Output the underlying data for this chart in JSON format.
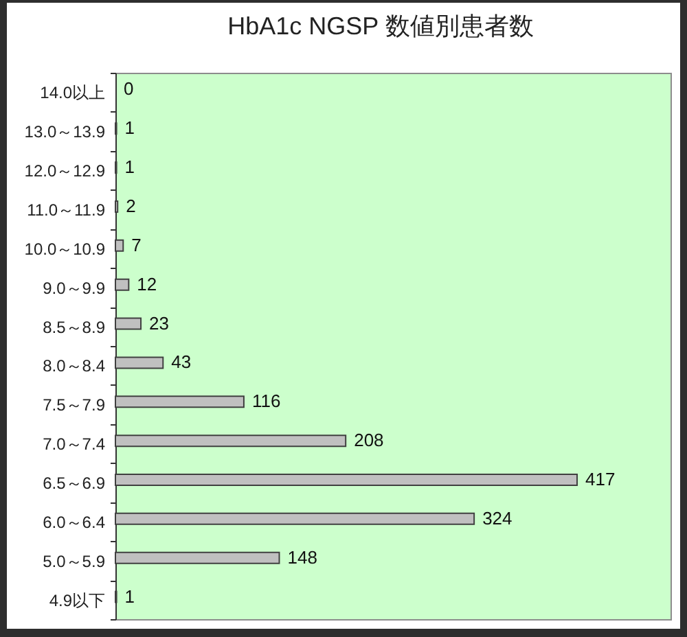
{
  "chart_data": {
    "type": "bar",
    "orientation": "horizontal",
    "title": "HbA1c NGSP 数値別患者数",
    "categories": [
      "14.0以上",
      "13.0～13.9",
      "12.0～12.9",
      "11.0～11.9",
      "10.0～10.9",
      "9.0～9.9",
      "8.5～8.9",
      "8.0～8.4",
      "7.5～7.9",
      "7.0～7.4",
      "6.5～6.9",
      "6.0～6.4",
      "5.0～5.9",
      "4.9以下"
    ],
    "values": [
      0,
      1,
      1,
      2,
      7,
      12,
      23,
      43,
      116,
      208,
      417,
      324,
      148,
      1
    ],
    "color": "#c0c0c0",
    "data_labels": true,
    "tick_labels": "y",
    "grid": false
  }
}
